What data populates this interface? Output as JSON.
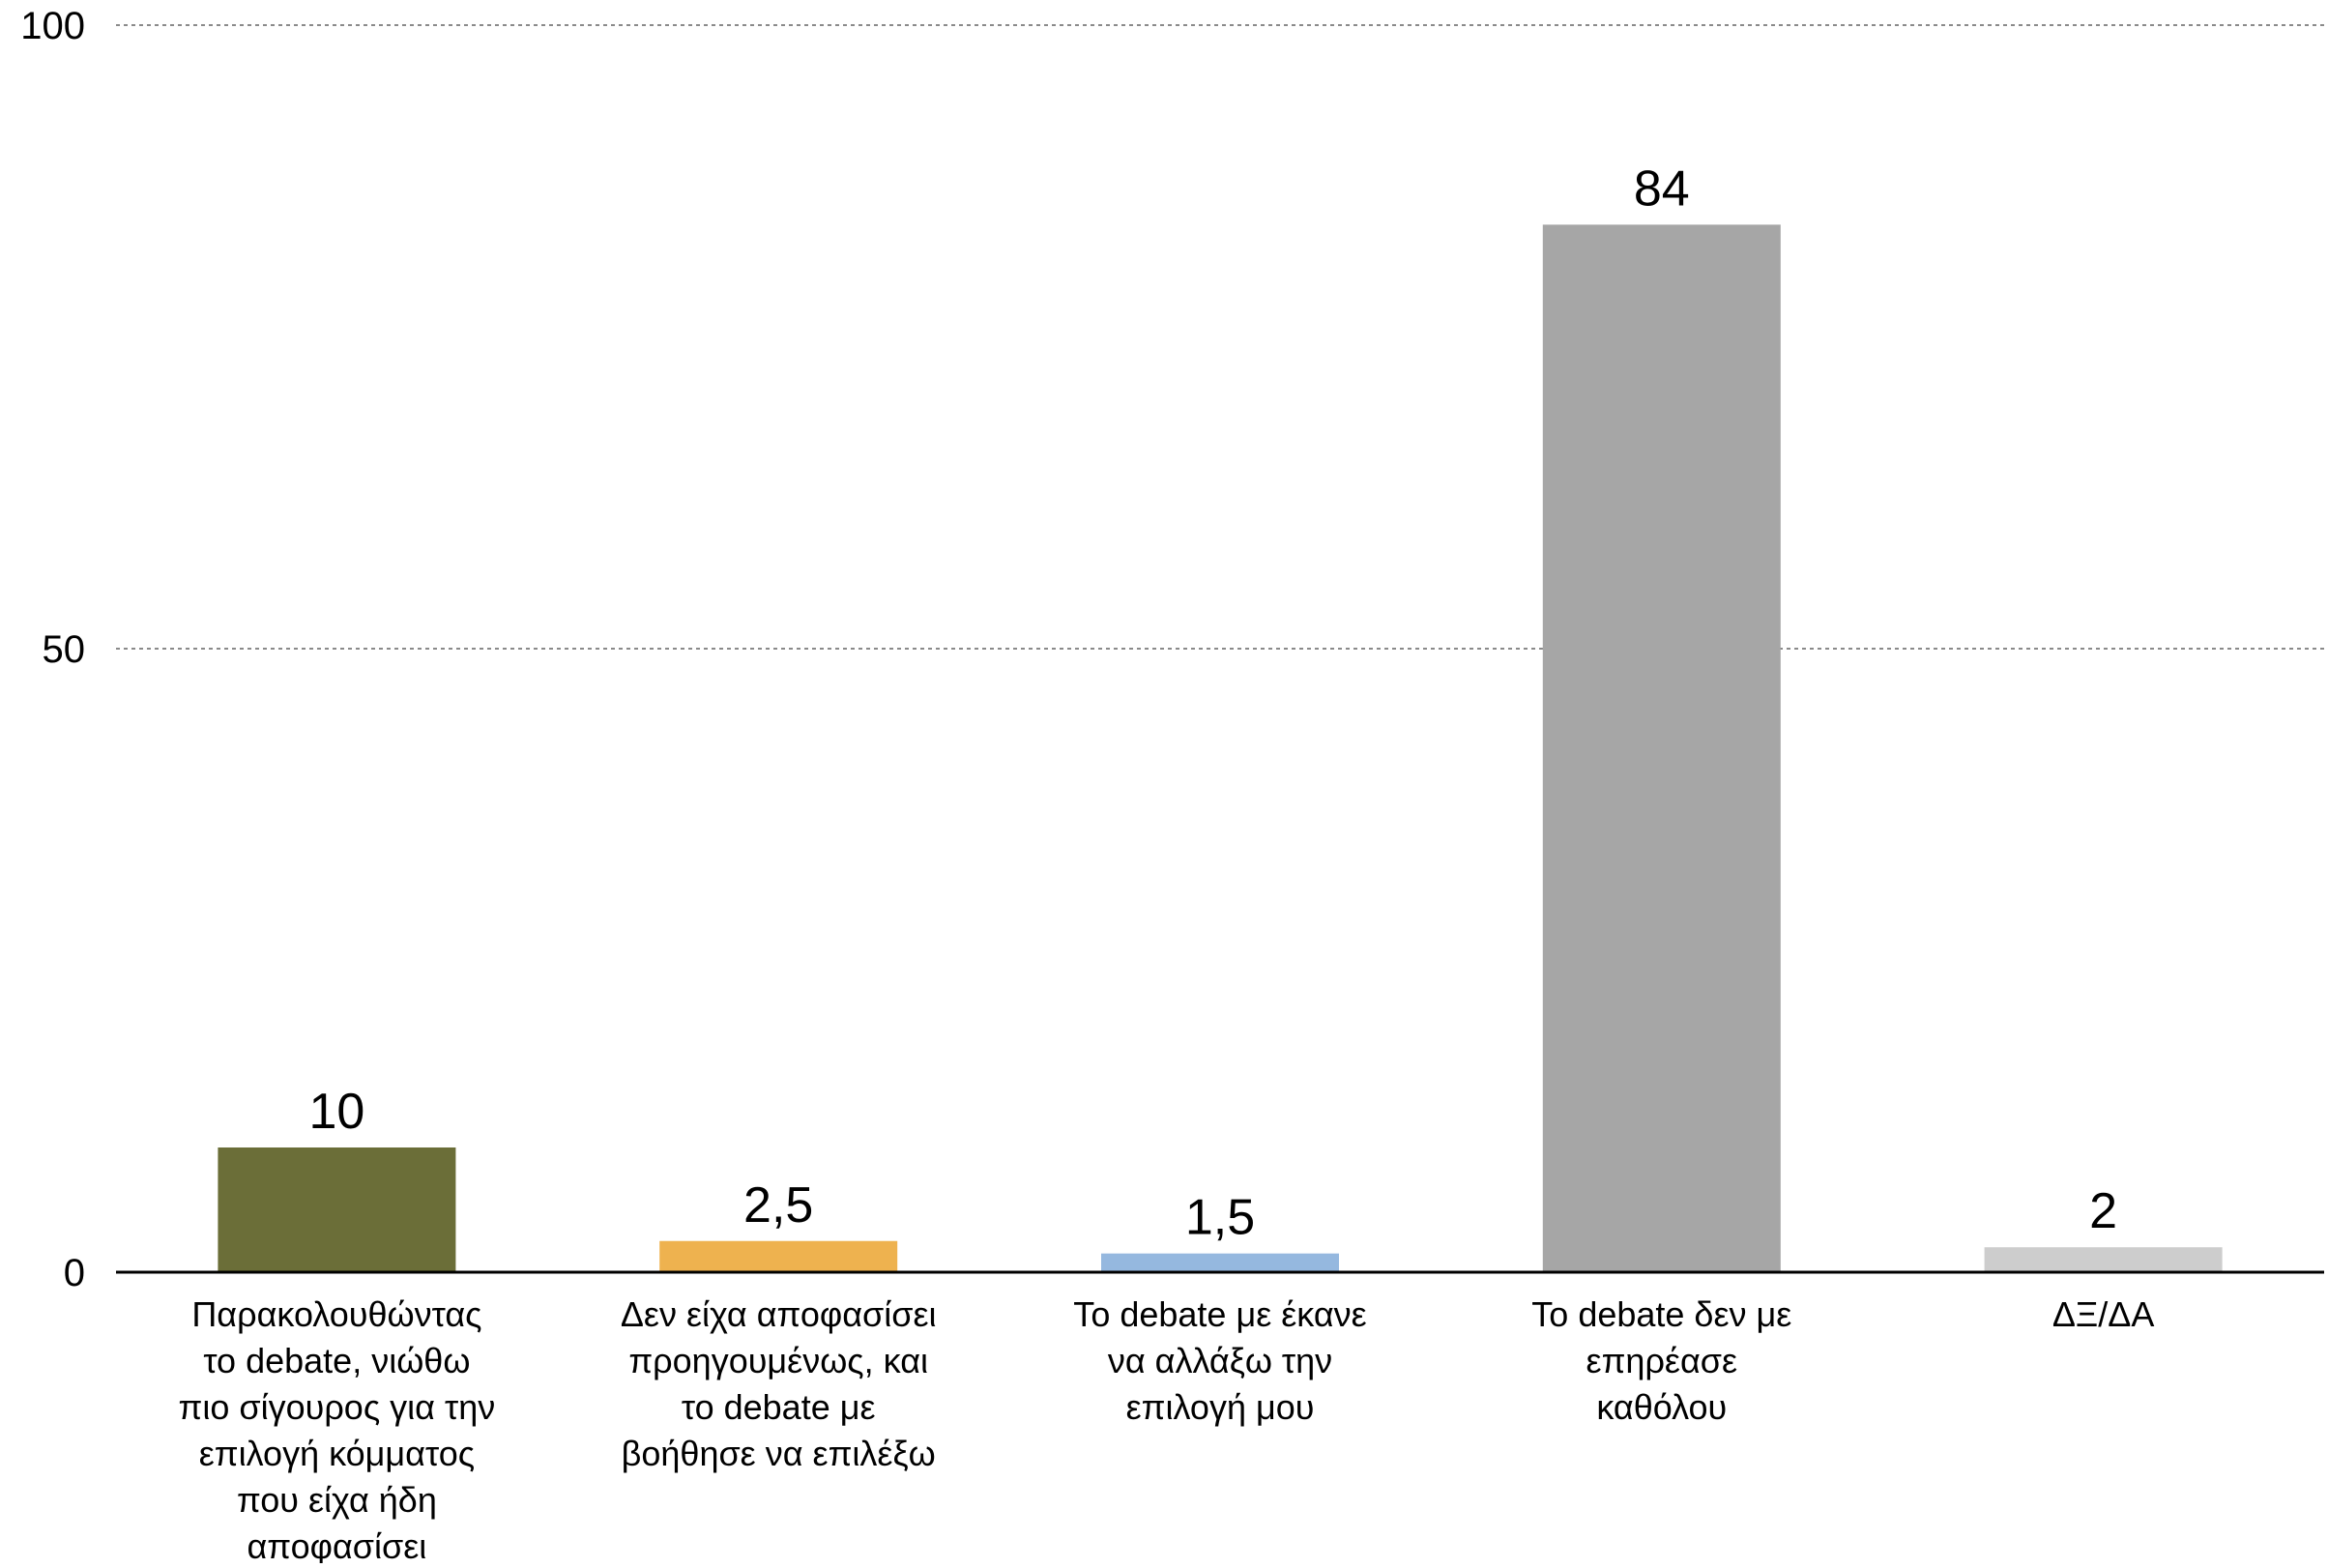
{
  "chart_data": {
    "type": "bar",
    "categories": [
      "Παρακολουθώντας το debate, νιώθω πιο σίγουρος για την επιλογή κόμματος που είχα ήδη αποφασίσει",
      "Δεν είχα αποφασίσει προηγουμένως, και το debate με βοήθησε να επιλέξω",
      "Το debate με έκανε να αλλάξω την επιλογή μου",
      "Το debate δεν με επηρέασε καθόλου",
      "ΔΞ/ΔΑ"
    ],
    "category_lines": [
      [
        "Παρακολουθώντας",
        "το debate, νιώθω",
        "πιο σίγουρος για την",
        "επιλογή κόμματος",
        "που είχα ήδη",
        "αποφασίσει"
      ],
      [
        "Δεν είχα αποφασίσει",
        "προηγουμένως, και",
        "το debate με",
        "βοήθησε να επιλέξω"
      ],
      [
        "Το debate με έκανε",
        "να αλλάξω την",
        "επιλογή μου"
      ],
      [
        "Το debate δεν με",
        "επηρέασε",
        "καθόλου"
      ],
      [
        "ΔΞ/ΔΑ"
      ]
    ],
    "values": [
      10,
      2.5,
      1.5,
      84,
      2
    ],
    "value_labels": [
      "10",
      "2,5",
      "1,5",
      "84",
      "2"
    ],
    "colors": [
      "#6b6e38",
      "#eeb24f",
      "#95b8df",
      "#a6a6a6",
      "#cdcdcd"
    ],
    "ylim": [
      0,
      100
    ],
    "yticks": [
      0,
      50,
      100
    ],
    "ytick_labels": [
      "0",
      "50",
      "100"
    ],
    "grid": true,
    "title": "",
    "xlabel": "",
    "ylabel": ""
  }
}
